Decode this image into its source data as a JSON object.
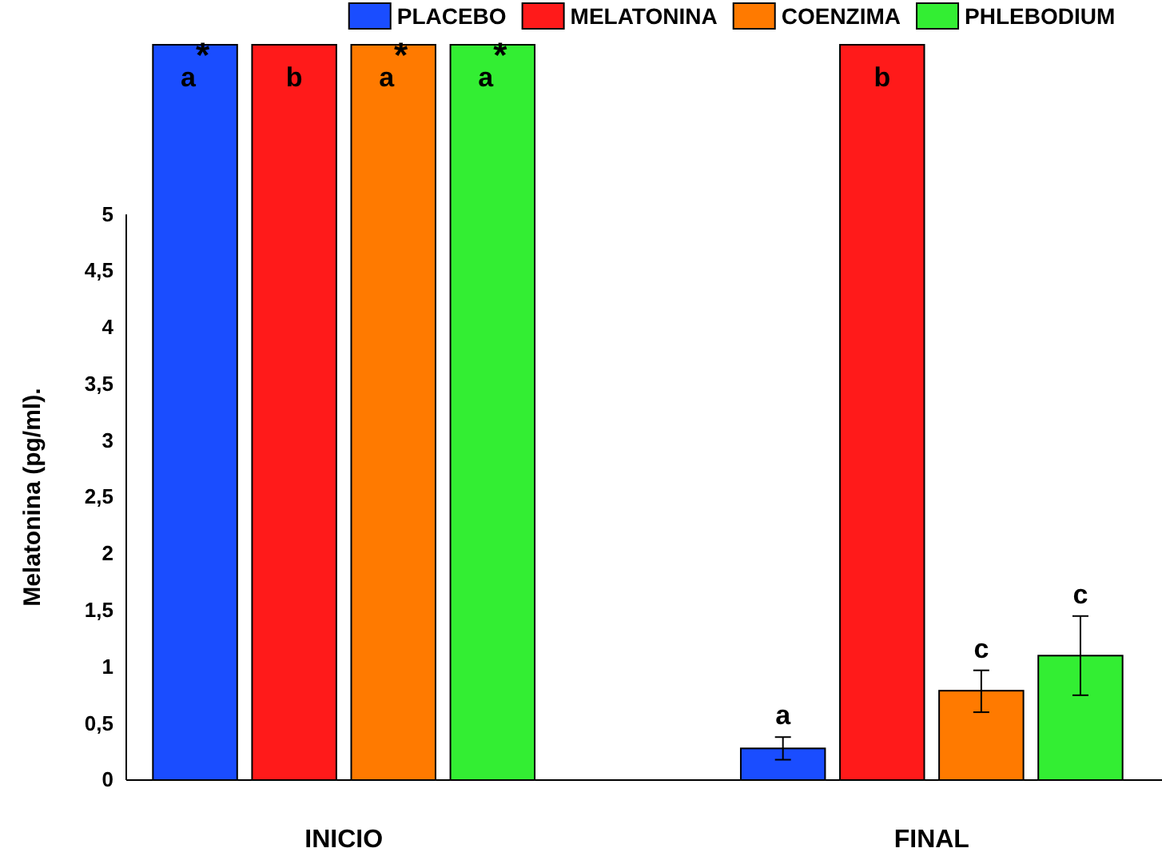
{
  "chart_data": {
    "type": "bar",
    "ylabel": "Melatonina (pg/ml).",
    "categories": [
      "INICIO",
      "FINAL"
    ],
    "series": [
      {
        "name": "PLACEBO",
        "color": "#1a4dff",
        "values": [
          6.5,
          0.28
        ],
        "errors": [
          null,
          [
            0.18,
            0.38
          ]
        ],
        "value_labels": [
          "a$^{*}$",
          "a"
        ]
      },
      {
        "name": "MELATONINA",
        "color": "#ff1a1a",
        "values": [
          6.5,
          6.5
        ],
        "errors": [
          null,
          null
        ],
        "value_labels": [
          "b",
          "b"
        ]
      },
      {
        "name": "COENZIMA",
        "color": "#ff7a00",
        "values": [
          6.5,
          0.79
        ],
        "errors": [
          null,
          [
            0.6,
            0.97
          ]
        ],
        "value_labels": [
          "a$^{*}$",
          "c"
        ]
      },
      {
        "name": "PHLEBODIUM",
        "color": "#33ee33",
        "values": [
          6.5,
          1.1
        ],
        "errors": [
          null,
          [
            0.75,
            1.45
          ]
        ],
        "value_labels": [
          "a$^{*}$",
          "c"
        ]
      }
    ],
    "ylim": [
      0,
      6.5
    ],
    "yticks": [
      0,
      {
        "value": 0.5,
        "label": "0,5"
      },
      1,
      {
        "value": 1.5,
        "label": "1,5"
      },
      2,
      {
        "value": 2.5,
        "label": "2,5"
      },
      3,
      {
        "value": 3.5,
        "label": "3,5"
      },
      4,
      {
        "value": 4.5,
        "label": "4,5"
      },
      5
    ],
    "grid": false,
    "legend": "top"
  }
}
